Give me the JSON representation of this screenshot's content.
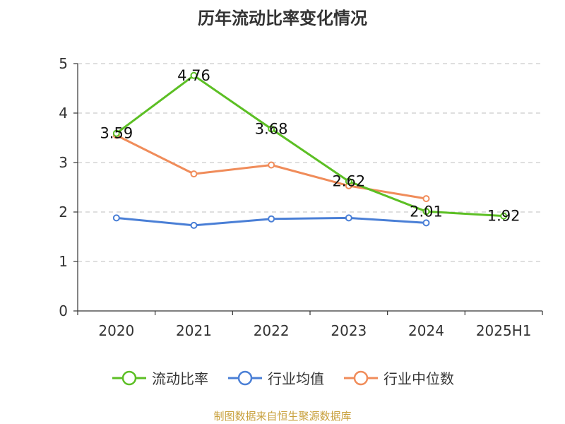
{
  "title": "历年流动比率变化情况",
  "source": "制图数据来自恒生聚源数据库",
  "colors": {
    "source_text": "#c8a03c",
    "axis": "#333333",
    "grid": "#cccccc"
  },
  "chart_data": {
    "type": "line",
    "title": "历年流动比率变化情况",
    "categories": [
      "2020",
      "2021",
      "2022",
      "2023",
      "2024",
      "2025H1"
    ],
    "ylim": [
      0,
      5
    ],
    "yticks": [
      "0",
      "1",
      "2",
      "3",
      "4",
      "5"
    ],
    "grid": true,
    "legend_position": "bottom",
    "series": [
      {
        "name": "流动比率",
        "color": "#5cbf24",
        "values": [
          3.59,
          4.76,
          3.68,
          2.62,
          2.01,
          1.92
        ],
        "labels": [
          "3.59",
          "4.76",
          "3.68",
          "2.62",
          "2.01",
          "1.92"
        ]
      },
      {
        "name": "行业均值",
        "color": "#4a7fd6",
        "values": [
          1.88,
          1.73,
          1.86,
          1.88,
          1.78,
          null
        ]
      },
      {
        "name": "行业中位数",
        "color": "#f08c5a",
        "values": [
          3.55,
          2.77,
          2.95,
          2.53,
          2.27,
          null
        ]
      }
    ]
  }
}
